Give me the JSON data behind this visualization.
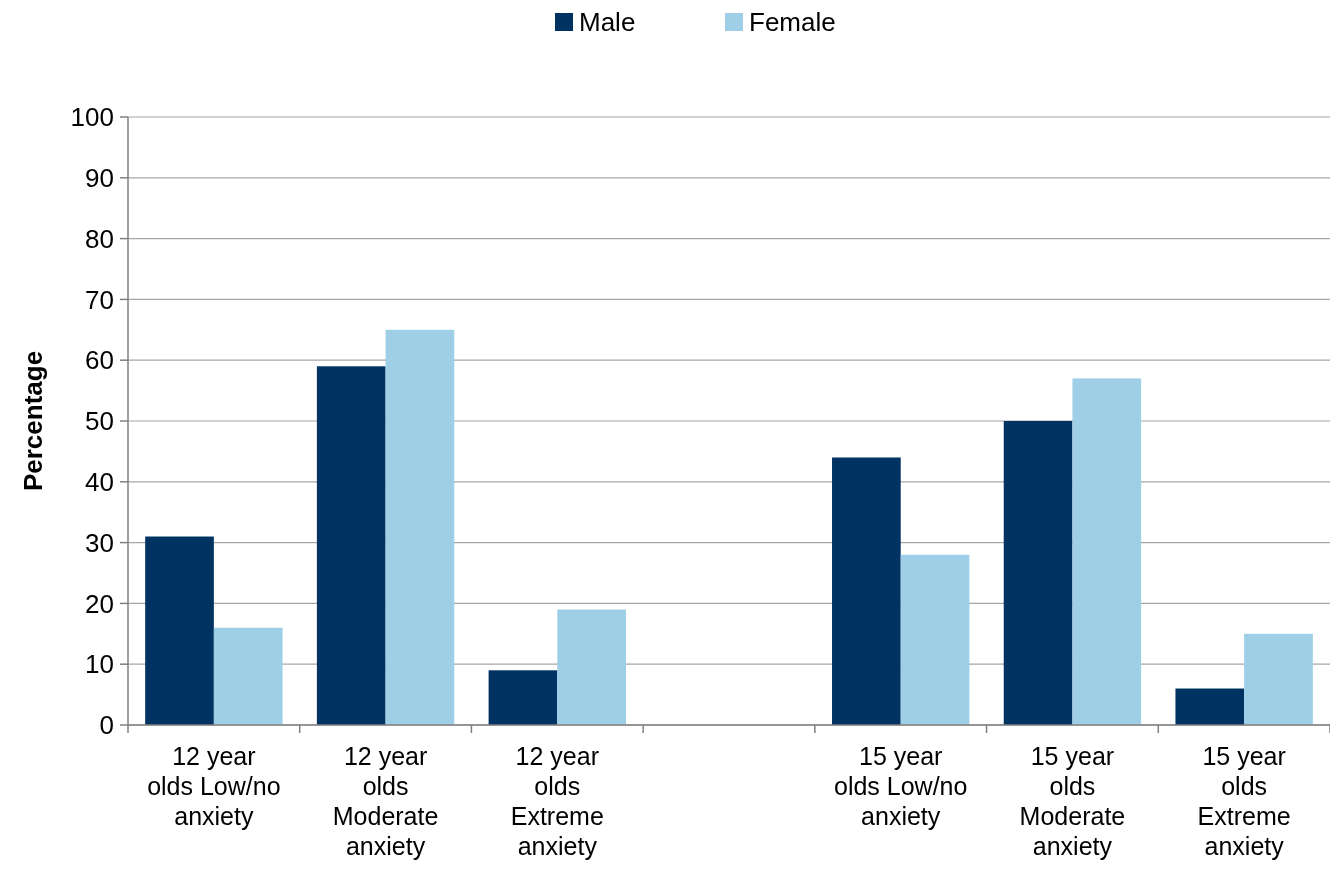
{
  "chart_data": {
    "type": "bar",
    "ylabel": "Percentage",
    "categories": [
      "12 year olds Low/no anxiety",
      "12 year olds Moderate anxiety",
      "12 year olds Extreme anxiety",
      null,
      "15 year olds Low/no anxiety",
      "15 year olds Moderate anxiety",
      "15 year olds Extreme anxiety"
    ],
    "series": [
      {
        "name": "Male",
        "color": "#003361",
        "values": [
          31,
          59,
          9,
          null,
          44,
          50,
          6
        ]
      },
      {
        "name": "Female",
        "color": "#9fcfe6",
        "values": [
          16,
          65,
          19,
          null,
          28,
          57,
          15
        ]
      }
    ],
    "ylim": [
      0,
      100
    ],
    "yticks": [
      0,
      10,
      20,
      30,
      40,
      50,
      60,
      70,
      80,
      90,
      100
    ],
    "grid": "y",
    "legend": "top"
  }
}
